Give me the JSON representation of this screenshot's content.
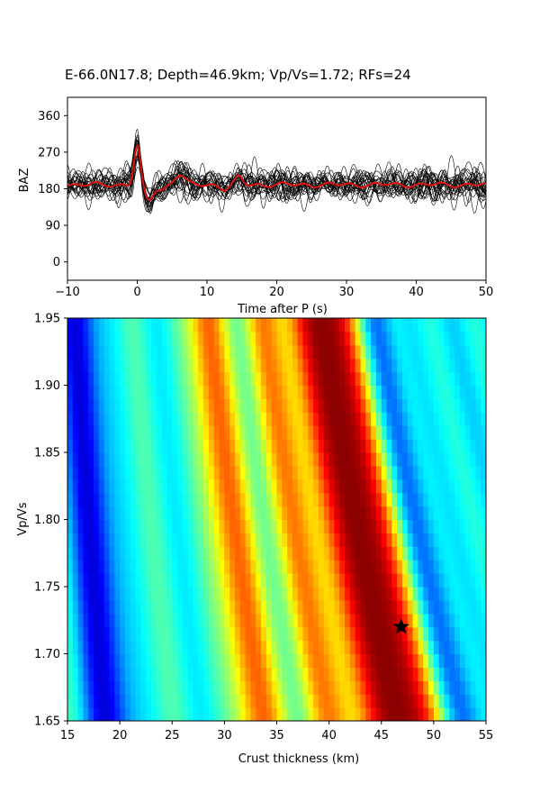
{
  "title": "E-66.0N17.8; Depth=46.9km; Vp/Vs=1.72; RFs=24",
  "chart_data": [
    {
      "type": "line",
      "xlabel": "Time after P (s)",
      "ylabel": "BAZ",
      "xlim": [
        -10,
        50
      ],
      "ylim": [
        -45,
        405
      ],
      "xticks": [
        "−10",
        "0",
        "10",
        "20",
        "30",
        "40",
        "50"
      ],
      "yticks": [
        "0",
        "90",
        "180",
        "270",
        "360"
      ],
      "traces": 24,
      "series": [
        {
          "name": "",
          "color": "#000000",
          "values": "24 receiver-function traces, baseline ~190 BAZ, main peak at t=0 reaching ~285"
        },
        {
          "name": "",
          "color": "#e01010",
          "values": "stacked mean trace"
        }
      ],
      "key_points": [
        {
          "x": 0,
          "y": 285
        },
        {
          "x": 1.5,
          "y": 150
        },
        {
          "x": 6,
          "y": 215
        },
        {
          "x": 14.5,
          "y": 205
        }
      ],
      "grid": false
    },
    {
      "type": "heatmap",
      "xlabel": "Crust thickness (km)",
      "ylabel": "Vp/Vs",
      "xlim": [
        15,
        55
      ],
      "ylim": [
        1.65,
        1.95
      ],
      "xticks": [
        "15",
        "20",
        "25",
        "30",
        "35",
        "40",
        "45",
        "50",
        "55"
      ],
      "yticks": [
        "1.65",
        "1.70",
        "1.75",
        "1.80",
        "1.85",
        "1.90",
        "1.95"
      ],
      "colormap": "jet",
      "best_fit": {
        "x": 46.9,
        "y": 1.72,
        "marker": "star"
      },
      "grid": false
    }
  ]
}
